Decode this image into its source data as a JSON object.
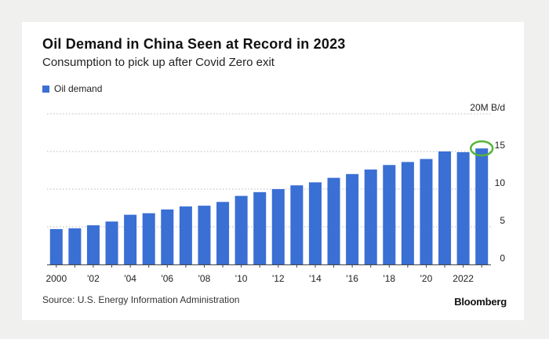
{
  "header": {
    "title": "Oil Demand in China Seen at Record in 2023",
    "subtitle": "Consumption to pick up after Covid Zero exit"
  },
  "legend": {
    "label": "Oil demand"
  },
  "footer": {
    "source": "Source: U.S. Energy Information Administration",
    "brand": "Bloomberg"
  },
  "colors": {
    "bar": "#3a6fd4",
    "highlight": "#56b33e",
    "grid": "#b8b8b8"
  },
  "chart_data": {
    "type": "bar",
    "categories": [
      "2000",
      "2001",
      "2002",
      "2003",
      "2004",
      "2005",
      "2006",
      "2007",
      "2008",
      "2009",
      "2010",
      "2011",
      "2012",
      "2013",
      "2014",
      "2015",
      "2016",
      "2017",
      "2018",
      "2019",
      "2020",
      "2021",
      "2022",
      "2023"
    ],
    "x_tick_labels": [
      "2000",
      "'02",
      "'04",
      "'06",
      "'08",
      "'10",
      "'12",
      "'14",
      "'16",
      "'18",
      "'20",
      "2022"
    ],
    "x_tick_categories": [
      "2000",
      "2002",
      "2004",
      "2006",
      "2008",
      "2010",
      "2012",
      "2014",
      "2016",
      "2018",
      "2020",
      "2022"
    ],
    "series": [
      {
        "name": "Oil demand",
        "values": [
          4.7,
          4.8,
          5.2,
          5.7,
          6.6,
          6.8,
          7.3,
          7.7,
          7.8,
          8.3,
          9.1,
          9.6,
          10.0,
          10.5,
          10.9,
          11.5,
          12.0,
          12.6,
          13.2,
          13.6,
          14.0,
          15.0,
          14.9,
          15.4
        ]
      }
    ],
    "y_ticks": [
      {
        "value": 0,
        "label": "0"
      },
      {
        "value": 5,
        "label": "5"
      },
      {
        "value": 10,
        "label": "10"
      },
      {
        "value": 15,
        "label": "15"
      },
      {
        "value": 20,
        "label": "20M B/d"
      }
    ],
    "ylim": [
      0,
      20
    ],
    "highlight_category": "2023",
    "grid": true,
    "legend_position": "top-left"
  }
}
